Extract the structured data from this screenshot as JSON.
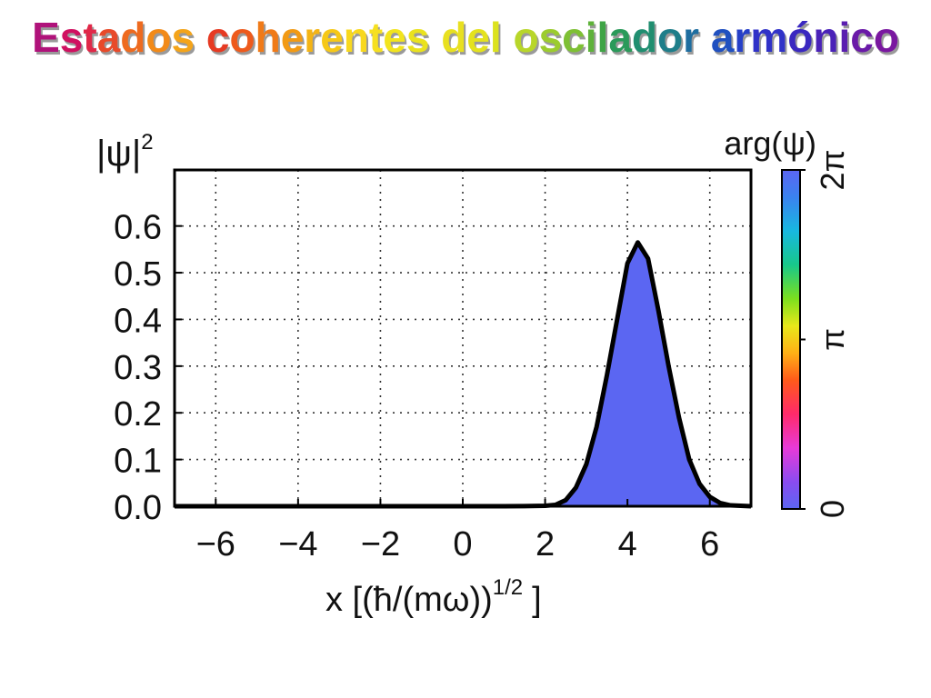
{
  "slide": {
    "title_words": [
      {
        "text": "Estados",
        "colors": [
          "#b0127a",
          "#d01060",
          "#e02848",
          "#e84a2a",
          "#ee6a1e",
          "#f28a18",
          "#f4a41a"
        ]
      },
      {
        "text": "coherentes",
        "colors": [
          "#e63a22",
          "#ee5a1c",
          "#f07a18",
          "#f29a14",
          "#f4b414",
          "#f6c818",
          "#f8d81e",
          "#f6e020",
          "#f2e41e",
          "#eae21e"
        ]
      },
      {
        "text": "del",
        "colors": [
          "#e8e020",
          "#e4e21e",
          "#dce21e"
        ]
      },
      {
        "text": "oscilador",
        "colors": [
          "#b8d62a",
          "#9ccc2e",
          "#7ec034",
          "#5eb23a",
          "#3fa446",
          "#2a9a5a",
          "#208e70",
          "#1e7e8a",
          "#1f6ea0"
        ]
      },
      {
        "text": "armónico",
        "colors": [
          "#2050c0",
          "#2640c8",
          "#3032c8",
          "#3a28c0",
          "#4a22b8",
          "#5a1eb0",
          "#6a1aa8",
          "#7a18a0"
        ]
      }
    ]
  },
  "chart_data": {
    "type": "area",
    "ylabel": "|ψ|",
    "ylabel_sup": "2",
    "xlabel": "x  [(ħ/(mω))",
    "xlabel_sup": "1/2",
    "xlabel_end": "]",
    "xlim": [
      -7,
      7
    ],
    "ylim": [
      0,
      0.72
    ],
    "xticks": [
      -6,
      -4,
      -2,
      0,
      2,
      4,
      6
    ],
    "xtick_labels": [
      "−6",
      "−4",
      "−2",
      "0",
      "2",
      "4",
      "6"
    ],
    "yticks": [
      0.0,
      0.1,
      0.2,
      0.3,
      0.4,
      0.5,
      0.6
    ],
    "ytick_labels": [
      "0.0",
      "0.1",
      "0.2",
      "0.3",
      "0.4",
      "0.5",
      "0.6"
    ],
    "grid": true,
    "series": [
      {
        "fill_color": "#5b66f2",
        "line_color": "#000000",
        "points": [
          [
            -7.0,
            0.0
          ],
          [
            1.0,
            0.0
          ],
          [
            1.5,
            0.0002
          ],
          [
            2.0,
            0.001
          ],
          [
            2.25,
            0.003
          ],
          [
            2.5,
            0.013
          ],
          [
            2.75,
            0.04
          ],
          [
            3.0,
            0.09
          ],
          [
            3.25,
            0.17
          ],
          [
            3.5,
            0.28
          ],
          [
            3.75,
            0.4
          ],
          [
            4.0,
            0.52
          ],
          [
            4.25,
            0.565
          ],
          [
            4.5,
            0.53
          ],
          [
            4.75,
            0.42
          ],
          [
            5.0,
            0.3
          ],
          [
            5.25,
            0.19
          ],
          [
            5.5,
            0.1
          ],
          [
            5.75,
            0.048
          ],
          [
            6.0,
            0.02
          ],
          [
            6.25,
            0.007
          ],
          [
            6.5,
            0.002
          ],
          [
            7.0,
            0.0
          ]
        ]
      }
    ],
    "colorbar": {
      "label": "arg(ψ)",
      "tick_labels": [
        "0",
        "π",
        "2π"
      ],
      "tick_values": [
        0,
        0.5,
        1
      ],
      "level": 0,
      "fill_color": "#5b66f2"
    }
  }
}
